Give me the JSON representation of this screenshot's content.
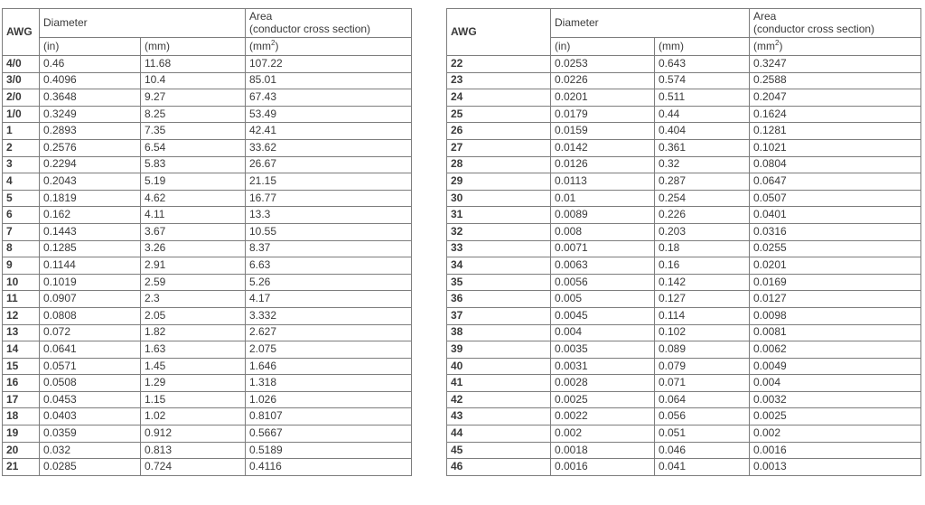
{
  "colors": {
    "background": "#ffffff",
    "border": "#7d7d7d",
    "text": "#3a3a3a"
  },
  "tables": [
    {
      "name": "awg-table-4/0-to-21",
      "header": {
        "awg": "AWG",
        "diameter": "Diameter",
        "area": "Area",
        "area_sub": "(conductor cross section)",
        "unit_in": "(in)",
        "unit_mm": "(mm)",
        "unit_mm2_open": "(mm",
        "unit_mm2_sup": "2",
        "unit_mm2_close": ")"
      },
      "rows": [
        [
          "4/0",
          "0.46",
          "11.68",
          "107.22"
        ],
        [
          "3/0",
          "0.4096",
          "10.4",
          "85.01"
        ],
        [
          "2/0",
          "0.3648",
          "9.27",
          "67.43"
        ],
        [
          "1/0",
          "0.3249",
          "8.25",
          "53.49"
        ],
        [
          "1",
          "0.2893",
          "7.35",
          "42.41"
        ],
        [
          "2",
          "0.2576",
          "6.54",
          "33.62"
        ],
        [
          "3",
          "0.2294",
          "5.83",
          "26.67"
        ],
        [
          "4",
          "0.2043",
          "5.19",
          "21.15"
        ],
        [
          "5",
          "0.1819",
          "4.62",
          "16.77"
        ],
        [
          "6",
          "0.162",
          "4.11",
          "13.3"
        ],
        [
          "7",
          "0.1443",
          "3.67",
          "10.55"
        ],
        [
          "8",
          "0.1285",
          "3.26",
          "8.37"
        ],
        [
          "9",
          "0.1144",
          "2.91",
          "6.63"
        ],
        [
          "10",
          "0.1019",
          "2.59",
          "5.26"
        ],
        [
          "11",
          "0.0907",
          "2.3",
          "4.17"
        ],
        [
          "12",
          "0.0808",
          "2.05",
          "3.332"
        ],
        [
          "13",
          "0.072",
          "1.82",
          "2.627"
        ],
        [
          "14",
          "0.0641",
          "1.63",
          "2.075"
        ],
        [
          "15",
          "0.0571",
          "1.45",
          "1.646"
        ],
        [
          "16",
          "0.0508",
          "1.29",
          "1.318"
        ],
        [
          "17",
          "0.0453",
          "1.15",
          "1.026"
        ],
        [
          "18",
          "0.0403",
          "1.02",
          "0.8107"
        ],
        [
          "19",
          "0.0359",
          "0.912",
          "0.5667"
        ],
        [
          "20",
          "0.032",
          "0.813",
          "0.5189"
        ],
        [
          "21",
          "0.0285",
          "0.724",
          "0.4116"
        ]
      ]
    },
    {
      "name": "awg-table-22-to-46",
      "header": {
        "awg": "AWG",
        "diameter": "Diameter",
        "area": "Area",
        "area_sub": "(conductor cross section)",
        "unit_in": "(in)",
        "unit_mm": "(mm)",
        "unit_mm2_open": "(mm",
        "unit_mm2_sup": "2",
        "unit_mm2_close": ")"
      },
      "rows": [
        [
          "22",
          "0.0253",
          "0.643",
          "0.3247"
        ],
        [
          "23",
          "0.0226",
          "0.574",
          "0.2588"
        ],
        [
          "24",
          "0.0201",
          "0.511",
          "0.2047"
        ],
        [
          "25",
          "0.0179",
          "0.44",
          "0.1624"
        ],
        [
          "26",
          "0.0159",
          "0.404",
          "0.1281"
        ],
        [
          "27",
          "0.0142",
          "0.361",
          "0.1021"
        ],
        [
          "28",
          "0.0126",
          "0.32",
          "0.0804"
        ],
        [
          "29",
          "0.0113",
          "0.287",
          "0.0647"
        ],
        [
          "30",
          "0.01",
          "0.254",
          "0.0507"
        ],
        [
          "31",
          "0.0089",
          "0.226",
          "0.0401"
        ],
        [
          "32",
          "0.008",
          "0.203",
          "0.0316"
        ],
        [
          "33",
          "0.0071",
          "0.18",
          "0.0255"
        ],
        [
          "34",
          "0.0063",
          "0.16",
          "0.0201"
        ],
        [
          "35",
          "0.0056",
          "0.142",
          "0.0169"
        ],
        [
          "36",
          "0.005",
          "0.127",
          "0.0127"
        ],
        [
          "37",
          "0.0045",
          "0.114",
          "0.0098"
        ],
        [
          "38",
          "0.004",
          "0.102",
          "0.0081"
        ],
        [
          "39",
          "0.0035",
          "0.089",
          "0.0062"
        ],
        [
          "40",
          "0.0031",
          "0.079",
          "0.0049"
        ],
        [
          "41",
          "0.0028",
          "0.071",
          "0.004"
        ],
        [
          "42",
          "0.0025",
          "0.064",
          "0.0032"
        ],
        [
          "43",
          "0.0022",
          "0.056",
          "0.0025"
        ],
        [
          "44",
          "0.002",
          "0.051",
          "0.002"
        ],
        [
          "45",
          "0.0018",
          "0.046",
          "0.0016"
        ],
        [
          "46",
          "0.0016",
          "0.041",
          "0.0013"
        ]
      ]
    }
  ]
}
